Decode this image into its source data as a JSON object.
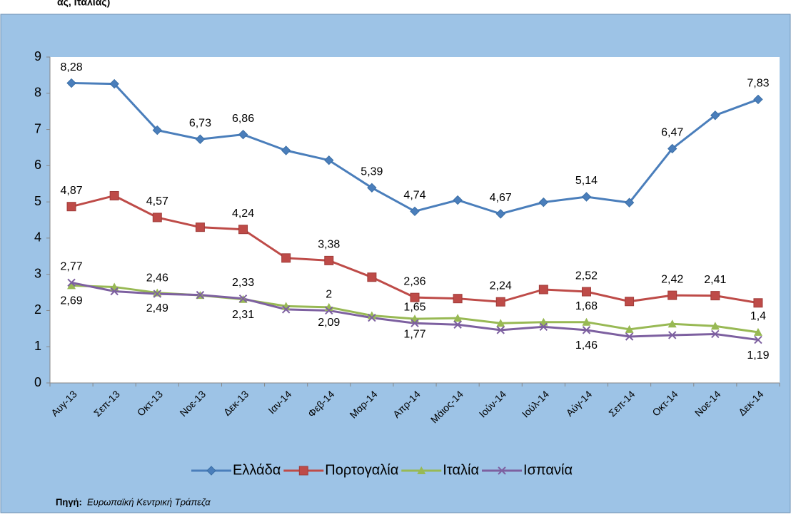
{
  "chart_data": {
    "type": "line",
    "title": "ας, Ιταλίας)",
    "categories": [
      "Αυγ-13",
      "Σεπ-13",
      "Οκτ-13",
      "Νοε-13",
      "Δεκ-13",
      "Ιαν-14",
      "Φεβ-14",
      "Μαρ-14",
      "Απρ-14",
      "Μάιος-14",
      "Ιούν-14",
      "Ιούλ-14",
      "Αύγ-14",
      "Σεπ-14",
      "Οκτ-14",
      "Νοε-14",
      "Δεκ-14"
    ],
    "series": [
      {
        "name": "Ελλάδα",
        "color": "#4a7ebb",
        "values": [
          8.28,
          8.26,
          6.98,
          6.73,
          6.86,
          6.42,
          6.15,
          5.39,
          4.74,
          5.05,
          4.67,
          4.99,
          5.14,
          4.98,
          6.47,
          7.39,
          7.83
        ],
        "value_labels": [
          "8,28",
          null,
          null,
          "6,73",
          "6,86",
          null,
          null,
          "5,39",
          "4,74",
          null,
          "4,67",
          null,
          "5,14",
          null,
          "6,47",
          null,
          "7,83"
        ]
      },
      {
        "name": "Πορτογαλία",
        "color": "#be4b48",
        "values": [
          4.87,
          5.17,
          4.57,
          4.3,
          4.24,
          3.45,
          3.38,
          2.92,
          2.36,
          2.33,
          2.24,
          2.58,
          2.52,
          2.25,
          2.42,
          2.41,
          2.21
        ],
        "value_labels": [
          "4,87",
          null,
          "4,57",
          null,
          "4,24",
          null,
          "3,38",
          null,
          "2,36",
          null,
          "2,24",
          null,
          "2,52",
          null,
          "2,42",
          "2,41",
          null
        ]
      },
      {
        "name": "Ιταλία",
        "color": "#98b954",
        "values": [
          2.69,
          2.65,
          2.49,
          2.42,
          2.31,
          2.12,
          2.09,
          1.86,
          1.77,
          1.79,
          1.65,
          1.68,
          1.68,
          1.48,
          1.63,
          1.57,
          1.4
        ],
        "value_labels": [
          "2,69",
          null,
          "2,49",
          null,
          "2,31",
          null,
          "2,09",
          null,
          "1,77",
          null,
          null,
          null,
          "1,68",
          null,
          null,
          null,
          "1,4"
        ]
      },
      {
        "name": "Ισπανία",
        "color": "#7d60a0",
        "values": [
          2.77,
          2.53,
          2.46,
          2.43,
          2.33,
          2.03,
          2,
          1.8,
          1.65,
          1.61,
          1.46,
          1.55,
          1.46,
          1.28,
          1.32,
          1.35,
          1.19
        ],
        "value_labels": [
          "2,77",
          null,
          "2,46",
          null,
          "2,33",
          null,
          "2",
          null,
          "1,65",
          null,
          null,
          null,
          "1,46",
          null,
          null,
          null,
          "1,19"
        ]
      }
    ],
    "ylim": [
      0,
      9
    ],
    "yticks": [
      0,
      1,
      2,
      3,
      4,
      5,
      6,
      7,
      8,
      9
    ],
    "grid": false,
    "legend": "bottom",
    "source_label": "Πηγή:",
    "source": "Ευρωπαϊκή Κεντρική Τράπεζα"
  }
}
